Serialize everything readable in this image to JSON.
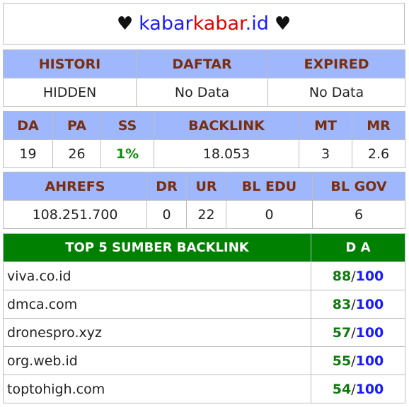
{
  "header": {
    "heart": "♥",
    "site_part1": "kabar",
    "site_part2": "kabar",
    "site_part3": ".id"
  },
  "info_table": {
    "headers": [
      "HISTORI",
      "DAFTAR",
      "EXPIRED"
    ],
    "values": [
      "HIDDEN",
      "No Data",
      "No Data"
    ]
  },
  "metrics_table": {
    "headers": [
      "DA",
      "PA",
      "SS",
      "BACKLINK",
      "MT",
      "MR"
    ],
    "values": [
      "19",
      "26",
      "1%",
      "18.053",
      "3",
      "2.6"
    ]
  },
  "ahrefs_table": {
    "headers": [
      "AHREFS",
      "DR",
      "UR",
      "BL EDU",
      "BL GOV"
    ],
    "values": [
      "108.251.700",
      "0",
      "22",
      "0",
      "6"
    ]
  },
  "backlinks": {
    "header_source": "TOP 5 SUMBER BACKLINK",
    "header_da": "D A",
    "separator": "/",
    "max": "100",
    "rows": [
      {
        "domain": "viva.co.id",
        "da": "88"
      },
      {
        "domain": "dmca.com",
        "da": "83"
      },
      {
        "domain": "dronespro.xyz",
        "da": "57"
      },
      {
        "domain": "org.web.id",
        "da": "55"
      },
      {
        "domain": "toptohigh.com",
        "da": "54"
      }
    ]
  },
  "colors": {
    "header_bg": "#9fb7fc",
    "header_text": "#7a2e0e",
    "backlink_header_bg": "#008000",
    "da_value": "#0f7a0f",
    "da_max": "#1a1aff",
    "site_blue": "#1a1aff",
    "site_red": "#e00000"
  }
}
